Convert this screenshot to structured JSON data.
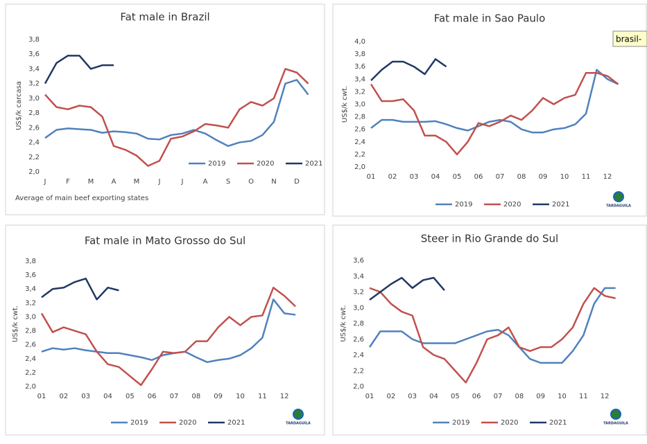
{
  "tooltip": "brasil-",
  "chart_data": [
    {
      "type": "line",
      "title": "Fat male in Brazil",
      "y_label": "US$/k carcasa",
      "note": "Average of main beef exporting states",
      "legend_position": "lower right",
      "x": [
        0,
        0.5,
        1,
        1.5,
        2,
        2.5,
        3,
        3.5,
        4,
        4.5,
        5,
        5.5,
        6,
        6.5,
        7,
        7.5,
        8,
        8.5,
        9,
        9.5,
        10,
        10.5,
        11,
        11.5
      ],
      "xlim": [
        0,
        12
      ],
      "xticks": [
        {
          "value": 0,
          "label": "J"
        },
        {
          "value": 1,
          "label": "F"
        },
        {
          "value": 2,
          "label": "M"
        },
        {
          "value": 3,
          "label": "A"
        },
        {
          "value": 4,
          "label": "M"
        },
        {
          "value": 5,
          "label": "J"
        },
        {
          "value": 6,
          "label": "J"
        },
        {
          "value": 7,
          "label": "A"
        },
        {
          "value": 8,
          "label": "S"
        },
        {
          "value": 9,
          "label": "O"
        },
        {
          "value": 10,
          "label": "N"
        },
        {
          "value": 11,
          "label": "D"
        }
      ],
      "ylim": [
        2.0,
        3.8
      ],
      "yticks": [
        {
          "value": 2.0,
          "label": "2,0"
        },
        {
          "value": 2.2,
          "label": "2,2"
        },
        {
          "value": 2.4,
          "label": "2,4"
        },
        {
          "value": 2.6,
          "label": "2,6"
        },
        {
          "value": 2.8,
          "label": "2,8"
        },
        {
          "value": 3.0,
          "label": "3,0"
        },
        {
          "value": 3.2,
          "label": "3,2"
        },
        {
          "value": 3.4,
          "label": "3,4"
        },
        {
          "value": 3.6,
          "label": "3,6"
        },
        {
          "value": 3.8,
          "label": "3,8"
        }
      ],
      "series": [
        {
          "name": "2019",
          "color": "#4f81bd",
          "values": [
            2.46,
            2.57,
            2.59,
            2.58,
            2.57,
            2.53,
            2.55,
            2.54,
            2.52,
            2.45,
            2.44,
            2.5,
            2.52,
            2.57,
            2.52,
            2.43,
            2.35,
            2.4,
            2.42,
            2.5,
            2.68,
            3.2,
            3.25,
            3.05
          ]
        },
        {
          "name": "2020",
          "color": "#c0504d",
          "values": [
            3.05,
            2.88,
            2.85,
            2.9,
            2.88,
            2.75,
            2.35,
            2.3,
            2.22,
            2.08,
            2.15,
            2.45,
            2.48,
            2.55,
            2.65,
            2.63,
            2.6,
            2.85,
            2.95,
            2.9,
            3.0,
            3.4,
            3.35,
            3.2
          ]
        },
        {
          "name": "2021",
          "color": "#1f3864",
          "values": [
            3.2,
            3.48,
            3.58,
            3.58,
            3.4,
            3.45,
            3.45,
            null,
            null,
            null,
            null,
            null,
            null,
            null,
            null,
            null,
            null,
            null,
            null,
            null,
            null,
            null,
            null,
            null
          ]
        }
      ]
    },
    {
      "type": "line",
      "title": "Fat male in Sao Paulo",
      "y_label": "US$/k cwt.",
      "logo_text": "TARDAGUILA",
      "legend_position": "bottom",
      "x": [
        0,
        0.5,
        1,
        1.5,
        2,
        2.5,
        3,
        3.5,
        4,
        4.5,
        5,
        5.5,
        6,
        6.5,
        7,
        7.5,
        8,
        8.5,
        9,
        9.5,
        10,
        10.5,
        11,
        11.5
      ],
      "xlim": [
        0,
        12
      ],
      "xticks": [
        {
          "value": 0,
          "label": "01"
        },
        {
          "value": 1,
          "label": "02"
        },
        {
          "value": 2,
          "label": "03"
        },
        {
          "value": 3,
          "label": "04"
        },
        {
          "value": 4,
          "label": "05"
        },
        {
          "value": 5,
          "label": "06"
        },
        {
          "value": 6,
          "label": "07"
        },
        {
          "value": 7,
          "label": "08"
        },
        {
          "value": 8,
          "label": "09"
        },
        {
          "value": 9,
          "label": "10"
        },
        {
          "value": 10,
          "label": "11"
        },
        {
          "value": 11,
          "label": "12"
        }
      ],
      "ylim": [
        2.0,
        4.0
      ],
      "yticks": [
        {
          "value": 2.0,
          "label": "2,0"
        },
        {
          "value": 2.2,
          "label": "2,2"
        },
        {
          "value": 2.4,
          "label": "2,4"
        },
        {
          "value": 2.6,
          "label": "2,6"
        },
        {
          "value": 2.8,
          "label": "2,8"
        },
        {
          "value": 3.0,
          "label": "3,0"
        },
        {
          "value": 3.2,
          "label": "3,2"
        },
        {
          "value": 3.4,
          "label": "3,4"
        },
        {
          "value": 3.6,
          "label": "3,6"
        },
        {
          "value": 3.8,
          "label": "3,8"
        },
        {
          "value": 4.0,
          "label": "4,0"
        }
      ],
      "series": [
        {
          "name": "2019",
          "color": "#4f81bd",
          "values": [
            2.62,
            2.75,
            2.75,
            2.72,
            2.72,
            2.72,
            2.73,
            2.68,
            2.62,
            2.58,
            2.65,
            2.72,
            2.75,
            2.72,
            2.6,
            2.55,
            2.55,
            2.6,
            2.62,
            2.68,
            2.85,
            3.55,
            3.4,
            3.32
          ]
        },
        {
          "name": "2020",
          "color": "#c0504d",
          "values": [
            3.32,
            3.05,
            3.05,
            3.08,
            2.9,
            2.5,
            2.5,
            2.4,
            2.2,
            2.4,
            2.7,
            2.65,
            2.72,
            2.82,
            2.75,
            2.9,
            3.1,
            3.0,
            3.1,
            3.15,
            3.5,
            3.5,
            3.45,
            3.32
          ]
        },
        {
          "name": "2021",
          "color": "#1f3864",
          "values": [
            3.38,
            3.55,
            3.68,
            3.68,
            3.6,
            3.48,
            3.72,
            3.6,
            null,
            null,
            null,
            null,
            null,
            null,
            null,
            null,
            null,
            null,
            null,
            null,
            null,
            null,
            null,
            null
          ]
        }
      ]
    },
    {
      "type": "line",
      "title": "Fat male in Mato Grosso do Sul",
      "y_label": "US$/k cwt.",
      "logo_text": "TARDAGUILA",
      "legend_position": "bottom",
      "x": [
        0,
        0.5,
        1,
        1.5,
        2,
        2.5,
        3,
        3.5,
        4,
        4.5,
        5,
        5.5,
        6,
        6.5,
        7,
        7.5,
        8,
        8.5,
        9,
        9.5,
        10,
        10.5,
        11,
        11.5
      ],
      "xlim": [
        0,
        12
      ],
      "xticks": [
        {
          "value": 0,
          "label": "01"
        },
        {
          "value": 1,
          "label": "02"
        },
        {
          "value": 2,
          "label": "03"
        },
        {
          "value": 3,
          "label": "04"
        },
        {
          "value": 4,
          "label": "05"
        },
        {
          "value": 5,
          "label": "06"
        },
        {
          "value": 6,
          "label": "07"
        },
        {
          "value": 7,
          "label": "08"
        },
        {
          "value": 8,
          "label": "09"
        },
        {
          "value": 9,
          "label": "10"
        },
        {
          "value": 10,
          "label": "11"
        },
        {
          "value": 11,
          "label": "12"
        }
      ],
      "ylim": [
        2.0,
        3.8
      ],
      "yticks": [
        {
          "value": 2.0,
          "label": "2,0"
        },
        {
          "value": 2.2,
          "label": "2,2"
        },
        {
          "value": 2.4,
          "label": "2,4"
        },
        {
          "value": 2.6,
          "label": "2,6"
        },
        {
          "value": 2.8,
          "label": "2,8"
        },
        {
          "value": 3.0,
          "label": "3,0"
        },
        {
          "value": 3.2,
          "label": "3,2"
        },
        {
          "value": 3.4,
          "label": "3,4"
        },
        {
          "value": 3.6,
          "label": "3,6"
        },
        {
          "value": 3.8,
          "label": "3,8"
        }
      ],
      "series": [
        {
          "name": "2019",
          "color": "#4f81bd",
          "values": [
            2.5,
            2.55,
            2.53,
            2.55,
            2.52,
            2.5,
            2.48,
            2.48,
            2.45,
            2.42,
            2.38,
            2.45,
            2.48,
            2.5,
            2.42,
            2.35,
            2.38,
            2.4,
            2.45,
            2.55,
            2.7,
            3.25,
            3.05,
            3.03
          ]
        },
        {
          "name": "2020",
          "color": "#c0504d",
          "values": [
            3.05,
            2.78,
            2.85,
            2.8,
            2.75,
            2.5,
            2.32,
            2.28,
            2.15,
            2.02,
            2.25,
            2.5,
            2.48,
            2.5,
            2.65,
            2.65,
            2.85,
            3.0,
            2.88,
            3.0,
            3.02,
            3.42,
            3.3,
            3.15
          ]
        },
        {
          "name": "2021",
          "color": "#1f3864",
          "values": [
            3.28,
            3.4,
            3.42,
            3.5,
            3.55,
            3.25,
            3.42,
            3.38,
            null,
            null,
            null,
            null,
            null,
            null,
            null,
            null,
            null,
            null,
            null,
            null,
            null,
            null,
            null,
            null
          ]
        }
      ]
    },
    {
      "type": "line",
      "title": "Steer in Rio Grande do Sul",
      "y_label": "US$/k cwt.",
      "logo_text": "TARDAGUILA",
      "legend_position": "bottom",
      "x": [
        0,
        0.5,
        1,
        1.5,
        2,
        2.5,
        3,
        3.5,
        4,
        4.5,
        5,
        5.5,
        6,
        6.5,
        7,
        7.5,
        8,
        8.5,
        9,
        9.5,
        10,
        10.5,
        11,
        11.5
      ],
      "xlim": [
        0,
        12
      ],
      "xticks": [
        {
          "value": 0,
          "label": "01"
        },
        {
          "value": 1,
          "label": "02"
        },
        {
          "value": 2,
          "label": "03"
        },
        {
          "value": 3,
          "label": "04"
        },
        {
          "value": 4,
          "label": "05"
        },
        {
          "value": 5,
          "label": "06"
        },
        {
          "value": 6,
          "label": "07"
        },
        {
          "value": 7,
          "label": "08"
        },
        {
          "value": 8,
          "label": "09"
        },
        {
          "value": 9,
          "label": "10"
        },
        {
          "value": 10,
          "label": "11"
        },
        {
          "value": 11,
          "label": "12"
        }
      ],
      "ylim": [
        2.0,
        3.6
      ],
      "yticks": [
        {
          "value": 2.0,
          "label": "2,0"
        },
        {
          "value": 2.2,
          "label": "2,2"
        },
        {
          "value": 2.4,
          "label": "2,4"
        },
        {
          "value": 2.6,
          "label": "2,6"
        },
        {
          "value": 2.8,
          "label": "2,8"
        },
        {
          "value": 3.0,
          "label": "3,0"
        },
        {
          "value": 3.2,
          "label": "3,2"
        },
        {
          "value": 3.4,
          "label": "3,4"
        },
        {
          "value": 3.6,
          "label": "3,6"
        }
      ],
      "series": [
        {
          "name": "2019",
          "color": "#4f81bd",
          "values": [
            2.5,
            2.7,
            2.7,
            2.7,
            2.6,
            2.55,
            2.55,
            2.55,
            2.55,
            2.6,
            2.65,
            2.7,
            2.72,
            2.65,
            2.5,
            2.35,
            2.3,
            2.3,
            2.3,
            2.45,
            2.65,
            3.05,
            3.25,
            3.25
          ]
        },
        {
          "name": "2020",
          "color": "#c0504d",
          "values": [
            3.25,
            3.2,
            3.05,
            2.95,
            2.9,
            2.5,
            2.4,
            2.35,
            2.2,
            2.05,
            2.3,
            2.6,
            2.65,
            2.75,
            2.5,
            2.45,
            2.5,
            2.5,
            2.6,
            2.75,
            3.05,
            3.25,
            3.15,
            3.12
          ]
        },
        {
          "name": "2021",
          "color": "#1f3864",
          "values": [
            3.1,
            3.2,
            3.3,
            3.38,
            3.25,
            3.35,
            3.38,
            3.22,
            null,
            null,
            null,
            null,
            null,
            null,
            null,
            null,
            null,
            null,
            null,
            null,
            null,
            null,
            null,
            null
          ]
        }
      ]
    }
  ]
}
